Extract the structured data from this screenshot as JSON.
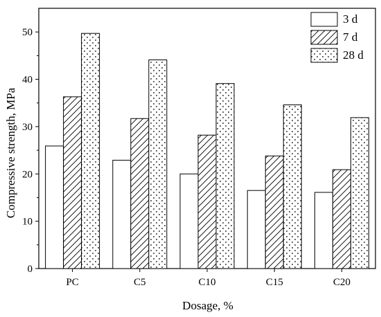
{
  "chart_data": {
    "type": "bar",
    "categories": [
      "PC",
      "C5",
      "C10",
      "C15",
      "C20"
    ],
    "series": [
      {
        "name": "3 d",
        "values": [
          25.9,
          22.9,
          20.0,
          16.5,
          16.1
        ],
        "pattern": "plain"
      },
      {
        "name": "7 d",
        "values": [
          36.3,
          31.7,
          28.2,
          23.8,
          20.9
        ],
        "pattern": "hatch"
      },
      {
        "name": "28 d",
        "values": [
          49.7,
          44.1,
          39.1,
          34.6,
          31.9
        ],
        "pattern": "dots"
      }
    ],
    "xlabel": "Dosage, %",
    "ylabel": "Compressive strength, MPa",
    "ylim": [
      0,
      55
    ],
    "yticks": [
      "0",
      "10",
      "20",
      "30",
      "40",
      "50"
    ],
    "grid": false,
    "legend_position": "top-right"
  },
  "colors": {
    "stroke": "#000000",
    "fill": "#ffffff"
  }
}
